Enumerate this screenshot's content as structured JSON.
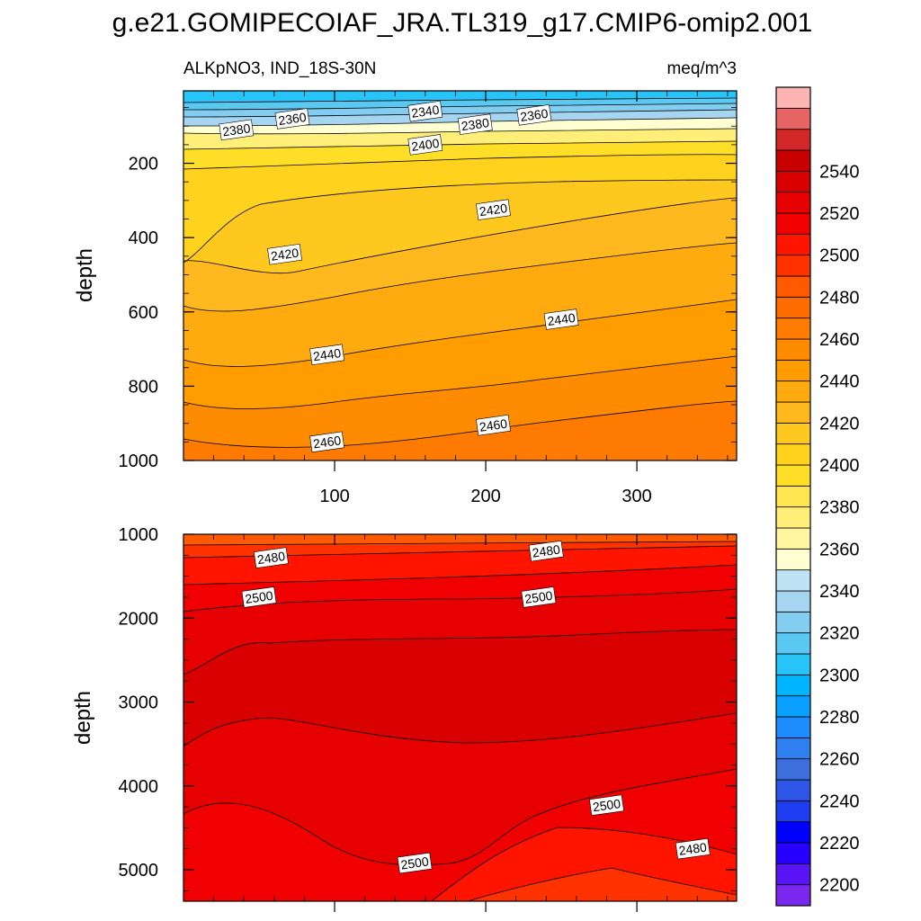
{
  "figure_title": "g.e21.GOMIPECOIAF_JRA.TL319_g17.CMIP6-omip2.001",
  "panel_title_left": "ALKpNO3, IND_18S-30N",
  "panel_title_right": "meq/m^3",
  "chart_data": [
    {
      "type": "contour",
      "panel": "upper",
      "title": "ALKpNO3, IND_18S-30N",
      "units": "meq/m^3",
      "xlabel": "",
      "ylabel": "depth",
      "xlim": [
        0,
        366
      ],
      "ylim": [
        1000,
        5
      ],
      "y_inverted": true,
      "x_ticks": [
        100,
        200,
        300
      ],
      "x_tick_labels": [
        "100",
        "200",
        "300"
      ],
      "y_ticks": [
        200,
        400,
        600,
        800,
        1000
      ],
      "y_tick_labels": [
        "200",
        "400",
        "600",
        "800",
        "1000"
      ],
      "contour_levels": [
        2340,
        2360,
        2380,
        2400,
        2420,
        2440,
        2460
      ],
      "contour_labels": [
        {
          "text": "2340",
          "x": 160,
          "y": 60
        },
        {
          "text": "2360",
          "x": 72,
          "y": 80
        },
        {
          "text": "2380",
          "x": 35,
          "y": 110
        },
        {
          "text": "2380",
          "x": 193,
          "y": 95
        },
        {
          "text": "2360",
          "x": 232,
          "y": 70
        },
        {
          "text": "2400",
          "x": 160,
          "y": 150
        },
        {
          "text": "2420",
          "x": 205,
          "y": 325
        },
        {
          "text": "2420",
          "x": 67,
          "y": 445
        },
        {
          "text": "2440",
          "x": 250,
          "y": 620
        },
        {
          "text": "2440",
          "x": 95,
          "y": 715
        },
        {
          "text": "2460",
          "x": 205,
          "y": 905
        },
        {
          "text": "2460",
          "x": 95,
          "y": 950
        }
      ]
    },
    {
      "type": "contour",
      "panel": "lower",
      "xlabel": "",
      "ylabel": "depth",
      "xlim": [
        0,
        366
      ],
      "ylim": [
        5375,
        1000
      ],
      "y_inverted": true,
      "y_ticks": [
        1000,
        2000,
        3000,
        4000,
        5000
      ],
      "y_tick_labels": [
        "1000",
        "2000",
        "3000",
        "4000",
        "5000"
      ],
      "contour_levels": [
        2470,
        2480,
        2490,
        2500,
        2510,
        2520
      ],
      "contour_labels": [
        {
          "text": "2480",
          "x": 58,
          "y": 1280
        },
        {
          "text": "2480",
          "x": 240,
          "y": 1200
        },
        {
          "text": "2500",
          "x": 50,
          "y": 1750
        },
        {
          "text": "2500",
          "x": 235,
          "y": 1750
        },
        {
          "text": "2500",
          "x": 280,
          "y": 4230
        },
        {
          "text": "2500",
          "x": 153,
          "y": 4920
        },
        {
          "text": "2480",
          "x": 337,
          "y": 4750
        }
      ]
    }
  ],
  "colorbar": {
    "tick_labels": [
      "2200",
      "2220",
      "2240",
      "2260",
      "2280",
      "2300",
      "2320",
      "2340",
      "2360",
      "2380",
      "2400",
      "2420",
      "2440",
      "2460",
      "2480",
      "2500",
      "2520",
      "2540"
    ],
    "colors": [
      "#7a28f0",
      "#5a14f5",
      "#2800ff",
      "#0000ff",
      "#1e3cf0",
      "#2d55e6",
      "#3c6edc",
      "#2f7ff0",
      "#1e8cff",
      "#0aa0ff",
      "#00b4ff",
      "#28c4f8",
      "#5ac8f0",
      "#82cdf0",
      "#a5d5f0",
      "#bfe3f5",
      "#ffffd2",
      "#fff5a0",
      "#ffee78",
      "#ffe650",
      "#ffde28",
      "#ffd21e",
      "#ffc81e",
      "#ffb91e",
      "#ffab0f",
      "#ff9c00",
      "#ff8c00",
      "#ff7c00",
      "#ff6c00",
      "#ff5a00",
      "#ff3200",
      "#ff1400",
      "#f00000",
      "#e60000",
      "#d80000",
      "#c80000",
      "#d22828",
      "#e66464",
      "#ffb4b4"
    ]
  }
}
